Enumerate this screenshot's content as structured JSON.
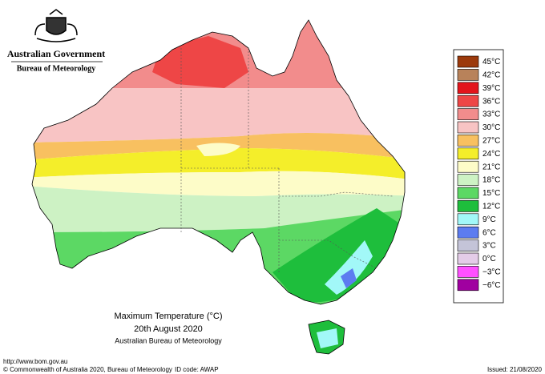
{
  "header": {
    "government": "Australian Government",
    "agency": "Bureau of Meteorology"
  },
  "map": {
    "title": "Maximum Temperature (°C)",
    "date": "20th August 2020",
    "source": "Australian Bureau of Meteorology"
  },
  "legend": [
    {
      "label": "45°C",
      "color": "#9c3a0c"
    },
    {
      "label": "42°C",
      "color": "#b8825a"
    },
    {
      "label": "39°C",
      "color": "#e3141c"
    },
    {
      "label": "36°C",
      "color": "#ee4646"
    },
    {
      "label": "33°C",
      "color": "#f28c8c"
    },
    {
      "label": "30°C",
      "color": "#f8c4c4"
    },
    {
      "label": "27°C",
      "color": "#f8c060"
    },
    {
      "label": "24°C",
      "color": "#f4ee2a"
    },
    {
      "label": "21°C",
      "color": "#fdfcc8"
    },
    {
      "label": "18°C",
      "color": "#cdf2c4"
    },
    {
      "label": "15°C",
      "color": "#5cd864"
    },
    {
      "label": "12°C",
      "color": "#1ebe3c"
    },
    {
      "label": "9°C",
      "color": "#a2f8f8"
    },
    {
      "label": "6°C",
      "color": "#5c7cf0"
    },
    {
      "label": "3°C",
      "color": "#c4c4d8"
    },
    {
      "label": "0°C",
      "color": "#e4cce8"
    },
    {
      "label": "−3°C",
      "color": "#ff50ff"
    },
    {
      "label": "−6°C",
      "color": "#a000a0"
    }
  ],
  "footer": {
    "url": "http://www.bom.gov.au",
    "copyright": "© Commonwealth of Australia 2020, Bureau of Meteorology",
    "id_code": "ID code: AWAP",
    "issued": "Issued: 21/08/2020"
  }
}
